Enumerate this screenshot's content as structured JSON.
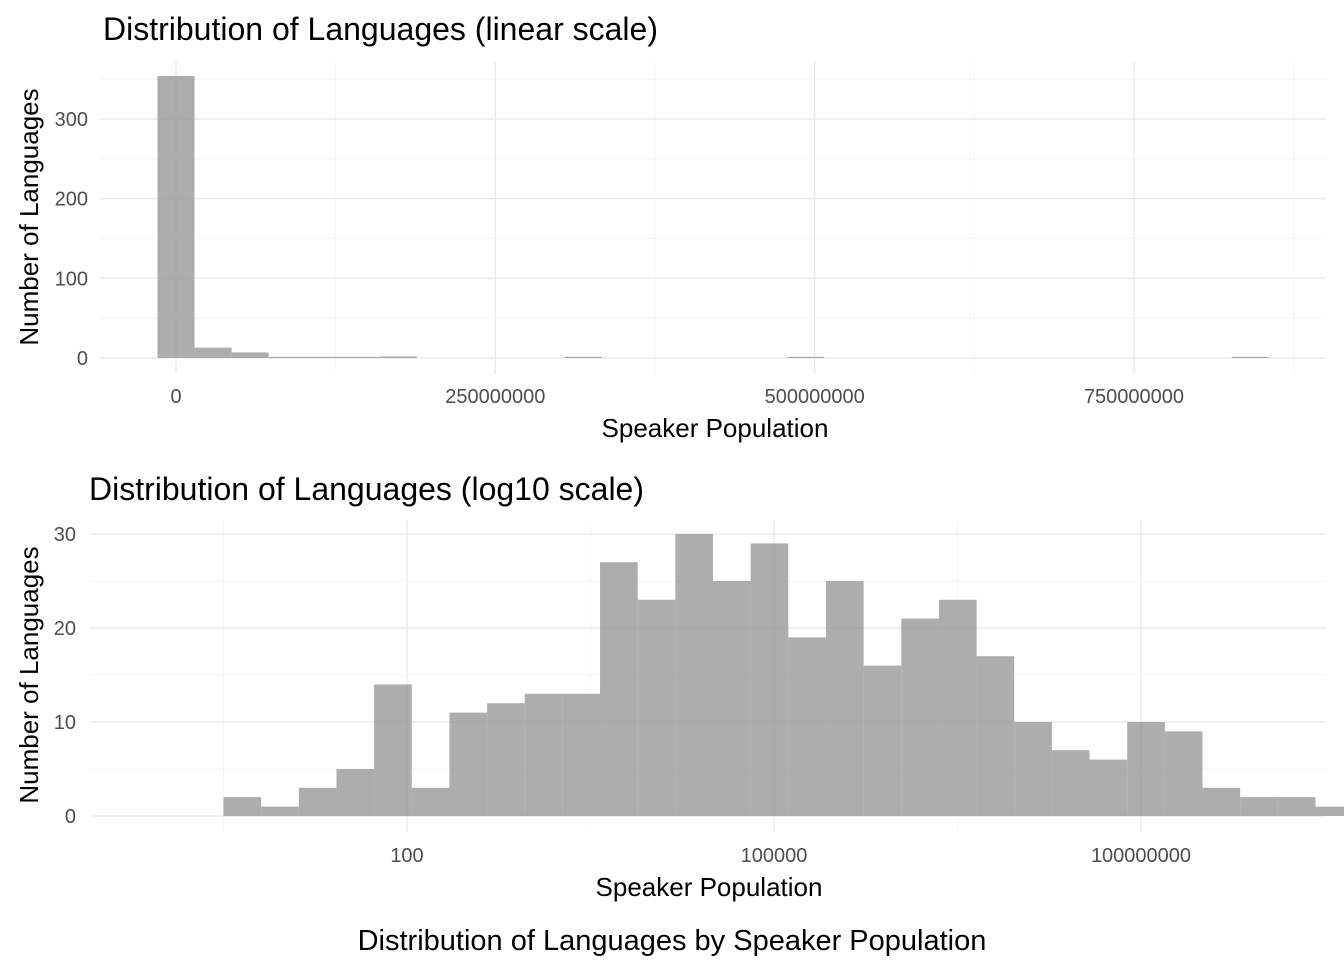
{
  "caption": "Distribution of Languages by Speaker Population",
  "chart_data": [
    {
      "type": "bar",
      "title": "Distribution of Languages (linear scale)",
      "xlabel": "Speaker Population",
      "ylabel": "Number of Languages",
      "x_scale": "linear",
      "xlim": [
        -30000000,
        900000000
      ],
      "ylim": [
        0,
        370
      ],
      "x_ticks": [
        {
          "value": 0,
          "label": "0"
        },
        {
          "value": 250000000,
          "label": "250000000"
        },
        {
          "value": 500000000,
          "label": "500000000"
        },
        {
          "value": 750000000,
          "label": "750000000"
        }
      ],
      "y_ticks": [
        {
          "value": 0,
          "label": "0"
        },
        {
          "value": 100,
          "label": "100"
        },
        {
          "value": 200,
          "label": "200"
        },
        {
          "value": 300,
          "label": "300"
        }
      ],
      "bins": [
        {
          "x0": -14500000,
          "x1": 14500000,
          "count": 354
        },
        {
          "x0": 14500000,
          "x1": 43500000,
          "count": 13
        },
        {
          "x0": 43500000,
          "x1": 72500000,
          "count": 7
        },
        {
          "x0": 72500000,
          "x1": 101500000,
          "count": 1
        },
        {
          "x0": 101500000,
          "x1": 130500000,
          "count": 1
        },
        {
          "x0": 130500000,
          "x1": 159500000,
          "count": 1
        },
        {
          "x0": 159500000,
          "x1": 188500000,
          "count": 2
        },
        {
          "x0": 304500000,
          "x1": 333500000,
          "count": 1
        },
        {
          "x0": 478500000,
          "x1": 507500000,
          "count": 1
        },
        {
          "x0": 826500000,
          "x1": 855500000,
          "count": 1
        }
      ],
      "grid": true,
      "legend": "none"
    },
    {
      "type": "bar",
      "title": "Distribution of Languages (log10 scale)",
      "xlabel": "Speaker Population",
      "ylabel": "Number of Languages",
      "x_scale": "log10",
      "xlim_log10": [
        0.17,
        7.23
      ],
      "ylim": [
        0,
        31
      ],
      "x_ticks": [
        {
          "log10": 2,
          "label": "100"
        },
        {
          "log10": 5,
          "label": "100000"
        },
        {
          "log10": 8,
          "label": "100000000"
        }
      ],
      "y_ticks": [
        {
          "value": 0,
          "label": "0"
        },
        {
          "value": 10,
          "label": "10"
        },
        {
          "value": 20,
          "label": "20"
        },
        {
          "value": 30,
          "label": "30"
        }
      ],
      "bin_start_log10": 0.5,
      "bin_width_log10": 0.3078,
      "counts": [
        2,
        1,
        3,
        5,
        14,
        3,
        11,
        12,
        13,
        13,
        27,
        23,
        30,
        25,
        29,
        19,
        25,
        16,
        21,
        23,
        17,
        10,
        7,
        6,
        10,
        9,
        3,
        2,
        2,
        1
      ],
      "grid": true,
      "legend": "none"
    }
  ]
}
